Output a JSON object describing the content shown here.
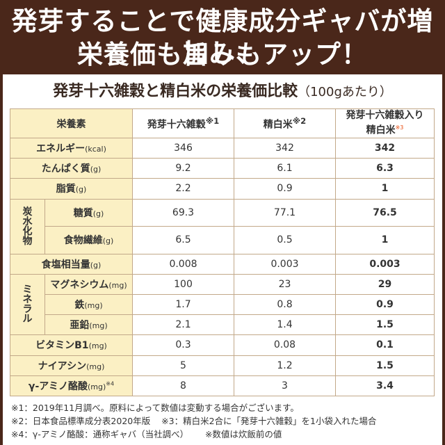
{
  "header": {
    "line1": "発芽することで健康成分ギャバが増加し、",
    "line2": "栄養価も旨みもアップ！"
  },
  "subtitle": {
    "main": "発芽十六雑穀と精白米の栄養価比較",
    "unit": "（100gあたり）"
  },
  "table": {
    "columns": {
      "nutrient": "栄養素",
      "col1": "発芽十六雑穀",
      "col1_note": "※1",
      "col2": "精白米",
      "col2_note": "※2",
      "col3_line1": "発芽十六雑穀入り",
      "col3_line2": "精白米",
      "col3_note": "※3"
    },
    "groups": {
      "carb": "炭水化物",
      "mineral": "ミネラル"
    },
    "rows": [
      {
        "label": "エネルギー",
        "unit": "(kcal)",
        "v1": "346",
        "v2": "342",
        "v3": "342"
      },
      {
        "label": "たんぱく質",
        "unit": "(g)",
        "v1": "9.2",
        "v2": "6.1",
        "v3": "6.3"
      },
      {
        "label": "脂質",
        "unit": "(g)",
        "v1": "2.2",
        "v2": "0.9",
        "v3": "1"
      },
      {
        "label": "糖質",
        "unit": "(g)",
        "v1": "69.3",
        "v2": "77.1",
        "v3": "76.5"
      },
      {
        "label": "食物繊維",
        "unit": "(g)",
        "v1": "6.5",
        "v2": "0.5",
        "v3": "1"
      },
      {
        "label": "食塩相当量",
        "unit": "(g)",
        "v1": "0.008",
        "v2": "0.003",
        "v3": "0.003"
      },
      {
        "label": "マグネシウム",
        "unit": "(mg)",
        "v1": "100",
        "v2": "23",
        "v3": "29"
      },
      {
        "label": "鉄",
        "unit": "(mg)",
        "v1": "1.7",
        "v2": "0.8",
        "v3": "0.9"
      },
      {
        "label": "亜鉛",
        "unit": "(mg)",
        "v1": "2.1",
        "v2": "1.4",
        "v3": "1.5"
      },
      {
        "label": "ビタミンB1",
        "unit": "(mg)",
        "v1": "0.3",
        "v2": "0.08",
        "v3": "0.1"
      },
      {
        "label": "ナイアシン",
        "unit": "(mg)",
        "v1": "5",
        "v2": "1.2",
        "v3": "1.5"
      },
      {
        "label": "γ-アミノ酪酸",
        "unit": "(mg)",
        "note": "※4",
        "v1": "8",
        "v2": "3",
        "v3": "3.4"
      }
    ]
  },
  "notes": {
    "n1": "※1：2019年11月調べ。原料によって数値は変動する場合がございます。",
    "n2a": "※2：日本食品標準成分表2020年版",
    "n2b": "※3：精白米2合に「発芽十六雑穀」を1小袋入れた場合",
    "n4a": "※4：γ-アミノ酪酸：通称ギャバ（当社調べ）",
    "n4b": "※数値は炊飯前の値"
  },
  "colors": {
    "header_bg": "#4a271a",
    "label_bg": "#fbf0c4",
    "accent": "#e84b0f",
    "border": "#c2a889"
  }
}
